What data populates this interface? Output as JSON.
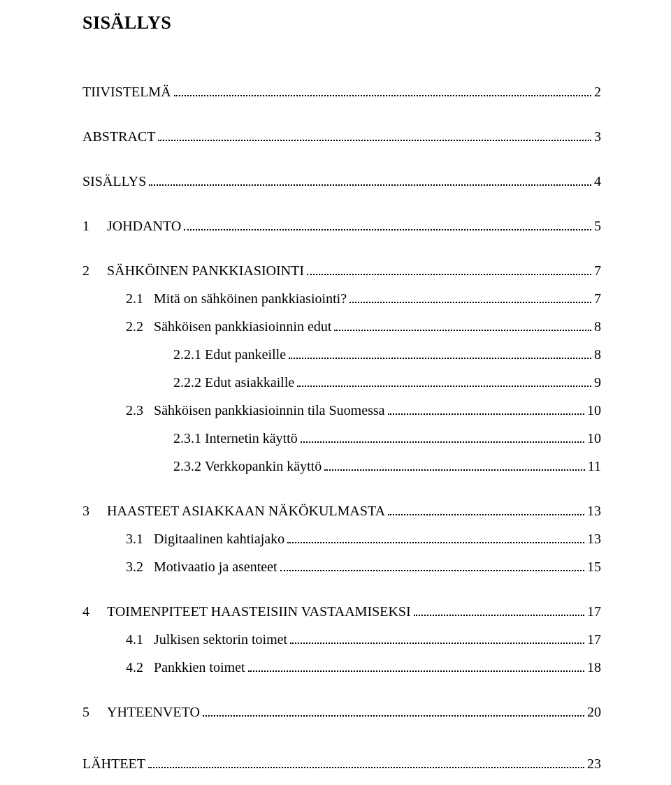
{
  "title": "SISÄLLYS",
  "font": {
    "family": "Book Antiqua / Palatino",
    "title_size_pt": 20,
    "body_size_pt": 15,
    "color": "#000000"
  },
  "page_bg": "#ffffff",
  "leader_style": "dotted",
  "entries": [
    {
      "num": "",
      "label": "TIIVISTELMÄ",
      "page": "2",
      "level": 0,
      "gap_after": "m"
    },
    {
      "num": "",
      "label": "ABSTRACT",
      "page": "3",
      "level": 0,
      "gap_after": "m"
    },
    {
      "num": "",
      "label": "SISÄLLYS",
      "page": "4",
      "level": 0,
      "gap_after": "m"
    },
    {
      "num": "1     ",
      "label": "JOHDANTO",
      "page": "5",
      "level": 0,
      "gap_after": "m"
    },
    {
      "num": "2     ",
      "label": "SÄHKÖINEN PANKKIASIOINTI",
      "page": "7",
      "level": 0,
      "gap_after": "s"
    },
    {
      "num": "2.1   ",
      "label": "Mitä on sähköinen pankkiasiointi?",
      "page": "7",
      "level": 1,
      "gap_after": "s"
    },
    {
      "num": "2.2   ",
      "label": "Sähköisen pankkiasioinnin edut",
      "page": "8",
      "level": 1,
      "gap_after": "s"
    },
    {
      "num": "2.2.1 ",
      "label": "Edut pankeille",
      "page": "8",
      "level": 2,
      "gap_after": "s"
    },
    {
      "num": "2.2.2 ",
      "label": "Edut asiakkaille",
      "page": "9",
      "level": 2,
      "gap_after": "s"
    },
    {
      "num": "2.3   ",
      "label": "Sähköisen pankkiasioinnin tila Suomessa",
      "page": "10",
      "level": 1,
      "gap_after": "s"
    },
    {
      "num": "2.3.1 ",
      "label": "Internetin käyttö",
      "page": "10",
      "level": 2,
      "gap_after": "s"
    },
    {
      "num": "2.3.2 ",
      "label": "Verkkopankin käyttö",
      "page": "11",
      "level": 2,
      "gap_after": "m"
    },
    {
      "num": "3     ",
      "label": "HAASTEET ASIAKKAAN NÄKÖKULMASTA",
      "page": "13",
      "level": 0,
      "gap_after": "s"
    },
    {
      "num": "3.1   ",
      "label": "Digitaalinen kahtiajako",
      "page": "13",
      "level": 1,
      "gap_after": "s"
    },
    {
      "num": "3.2   ",
      "label": "Motivaatio ja asenteet",
      "page": "15",
      "level": 1,
      "gap_after": "m"
    },
    {
      "num": "4     ",
      "label": "TOIMENPITEET HAASTEISIIN VASTAAMISEKSI",
      "page": "17",
      "level": 0,
      "gap_after": "s"
    },
    {
      "num": "4.1   ",
      "label": "Julkisen sektorin toimet",
      "page": "17",
      "level": 1,
      "gap_after": "s"
    },
    {
      "num": "4.2   ",
      "label": "Pankkien toimet",
      "page": "18",
      "level": 1,
      "gap_after": "m"
    },
    {
      "num": "5     ",
      "label": "YHTEENVETO",
      "page": "20",
      "level": 0,
      "gap_after": "l"
    },
    {
      "num": "",
      "label": "LÄHTEET",
      "page": "23",
      "level": 0,
      "gap_after": "s"
    }
  ]
}
